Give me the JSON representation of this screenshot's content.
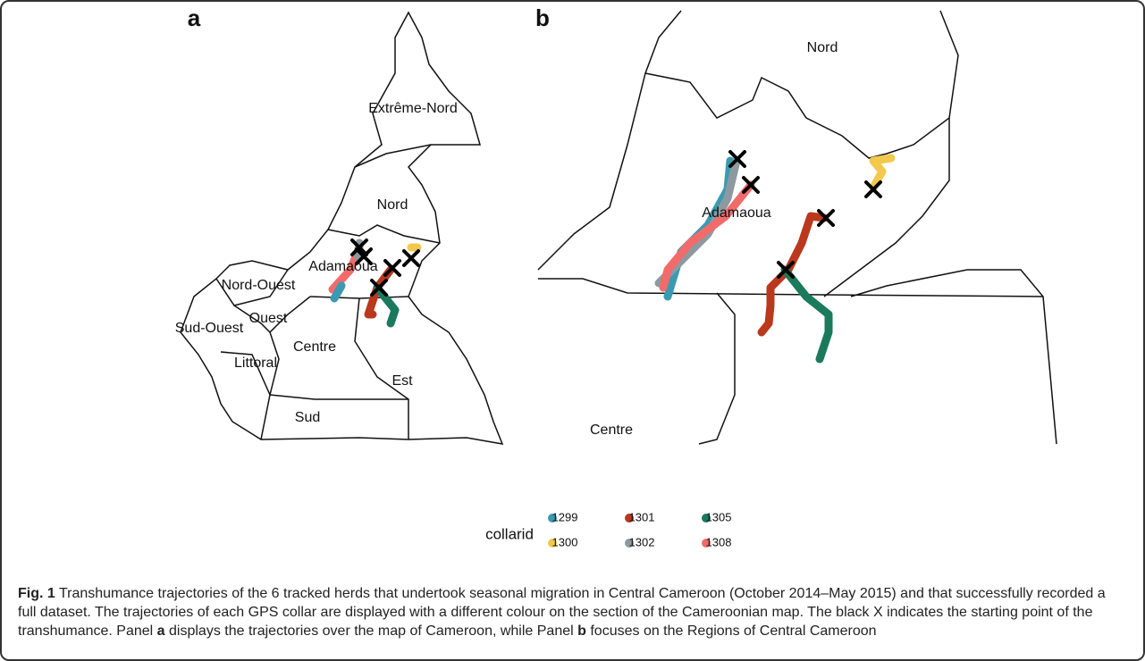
{
  "panels": [
    {
      "label": "a",
      "regions": [
        "Extrême-Nord",
        "Nord",
        "Adamaoua",
        "Nord-Ouest",
        "Ouest",
        "Sud-Ouest",
        "Centre",
        "Littoral",
        "Est",
        "Sud"
      ]
    },
    {
      "label": "b",
      "regions": [
        "Nord",
        "Adamaoua",
        "Centre"
      ]
    }
  ],
  "legend": {
    "title": "collarid",
    "items": [
      {
        "name": "1299",
        "color": "#3b9ab2"
      },
      {
        "name": "1301",
        "color": "#b9381e"
      },
      {
        "name": "1305",
        "color": "#1b7a5c"
      },
      {
        "name": "1300",
        "color": "#f2c94c"
      },
      {
        "name": "1302",
        "color": "#8c9aa0"
      },
      {
        "name": "1308",
        "color": "#f26b6b"
      }
    ]
  },
  "caption": {
    "figure": "Fig. 1",
    "parts": [
      " Transhumance trajectories of the 6 tracked herds that undertook seasonal migration in Central Cameroon (October 2014–May 2015) and that successfully recorded a full dataset. The trajectories of each GPS collar are displayed with a different colour on the section of the Cameroonian map. The black X indicates the starting point of the transhumance. Panel ",
      "a",
      " displays the trajectories over the map of Cameroon, while Panel ",
      "b",
      " focuses on the Regions of Central Cameroon"
    ]
  }
}
